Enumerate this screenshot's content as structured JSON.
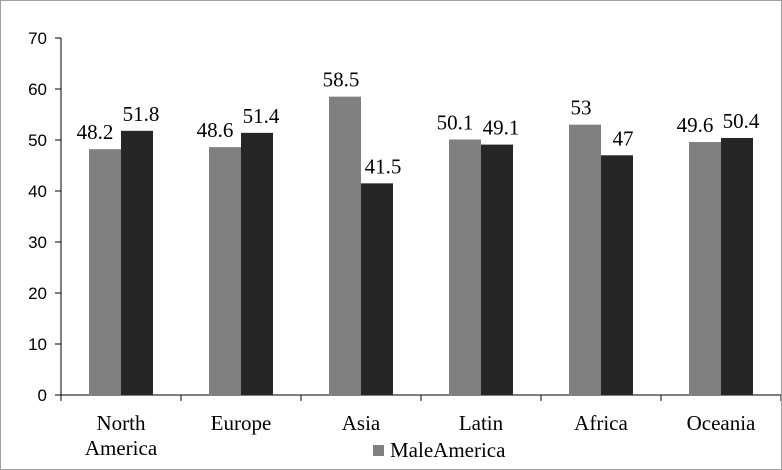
{
  "chart_data": {
    "type": "bar",
    "title": "",
    "xlabel": "",
    "ylabel": "",
    "categories": [
      [
        "North",
        "America"
      ],
      [
        "Europe"
      ],
      [
        "Asia"
      ],
      [
        "Latin"
      ],
      [
        "Africa"
      ],
      [
        "Oceania"
      ]
    ],
    "series": [
      {
        "name": "Male",
        "color": "#808080",
        "values": [
          48.2,
          48.6,
          58.5,
          50.1,
          53,
          49.6
        ]
      },
      {
        "name": "",
        "color": "#262626",
        "values": [
          51.8,
          51.4,
          41.5,
          49.1,
          47,
          50.4
        ]
      }
    ],
    "ylim": [
      0,
      70
    ],
    "yticks": [
      0,
      10,
      20,
      30,
      40,
      50,
      60,
      70
    ],
    "grid": false,
    "legend": {
      "position": "bottom",
      "entries": [
        {
          "label": "Male",
          "color": "#808080"
        }
      ],
      "trailing_text": "America"
    }
  }
}
